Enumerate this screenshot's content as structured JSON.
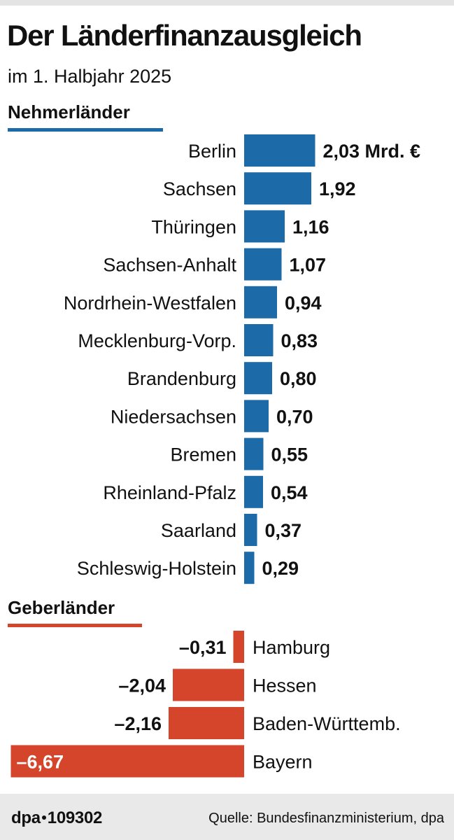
{
  "title": "Der Länderfinanzausgleich",
  "subtitle": "im 1. Halbjahr 2025",
  "receivers_heading": "Nehmerländer",
  "payers_heading": "Geberländer",
  "colors": {
    "receivers": "#1c6aa8",
    "payers": "#d4452b"
  },
  "footer": {
    "agency": "dpa",
    "graphic_id": "109302",
    "source": "Quelle: Bundesfinanzministerium, dpa"
  },
  "chart_data": {
    "type": "bar",
    "orientation": "horizontal",
    "unit": "Mrd. €",
    "receivers": [
      {
        "label": "Berlin",
        "value": 2.03,
        "value_text": "2,03 Mrd. €"
      },
      {
        "label": "Sachsen",
        "value": 1.92,
        "value_text": "1,92"
      },
      {
        "label": "Thüringen",
        "value": 1.16,
        "value_text": "1,16"
      },
      {
        "label": "Sachsen-Anhalt",
        "value": 1.07,
        "value_text": "1,07"
      },
      {
        "label": "Nordrhein-Westfalen",
        "value": 0.94,
        "value_text": "0,94"
      },
      {
        "label": "Mecklenburg-Vorp.",
        "value": 0.83,
        "value_text": "0,83"
      },
      {
        "label": "Brandenburg",
        "value": 0.8,
        "value_text": "0,80"
      },
      {
        "label": "Niedersachsen",
        "value": 0.7,
        "value_text": "0,70"
      },
      {
        "label": "Bremen",
        "value": 0.55,
        "value_text": "0,55"
      },
      {
        "label": "Rheinland-Pfalz",
        "value": 0.54,
        "value_text": "0,54"
      },
      {
        "label": "Saarland",
        "value": 0.37,
        "value_text": "0,37"
      },
      {
        "label": "Schleswig-Holstein",
        "value": 0.29,
        "value_text": "0,29"
      }
    ],
    "payers": [
      {
        "label": "Hamburg",
        "value": -0.31,
        "value_text": "–0,31"
      },
      {
        "label": "Hessen",
        "value": -2.04,
        "value_text": "–2,04"
      },
      {
        "label": "Baden-Württemb.",
        "value": -2.16,
        "value_text": "–2,16"
      },
      {
        "label": "Bayern",
        "value": -6.67,
        "value_text": "–6,67"
      }
    ]
  }
}
